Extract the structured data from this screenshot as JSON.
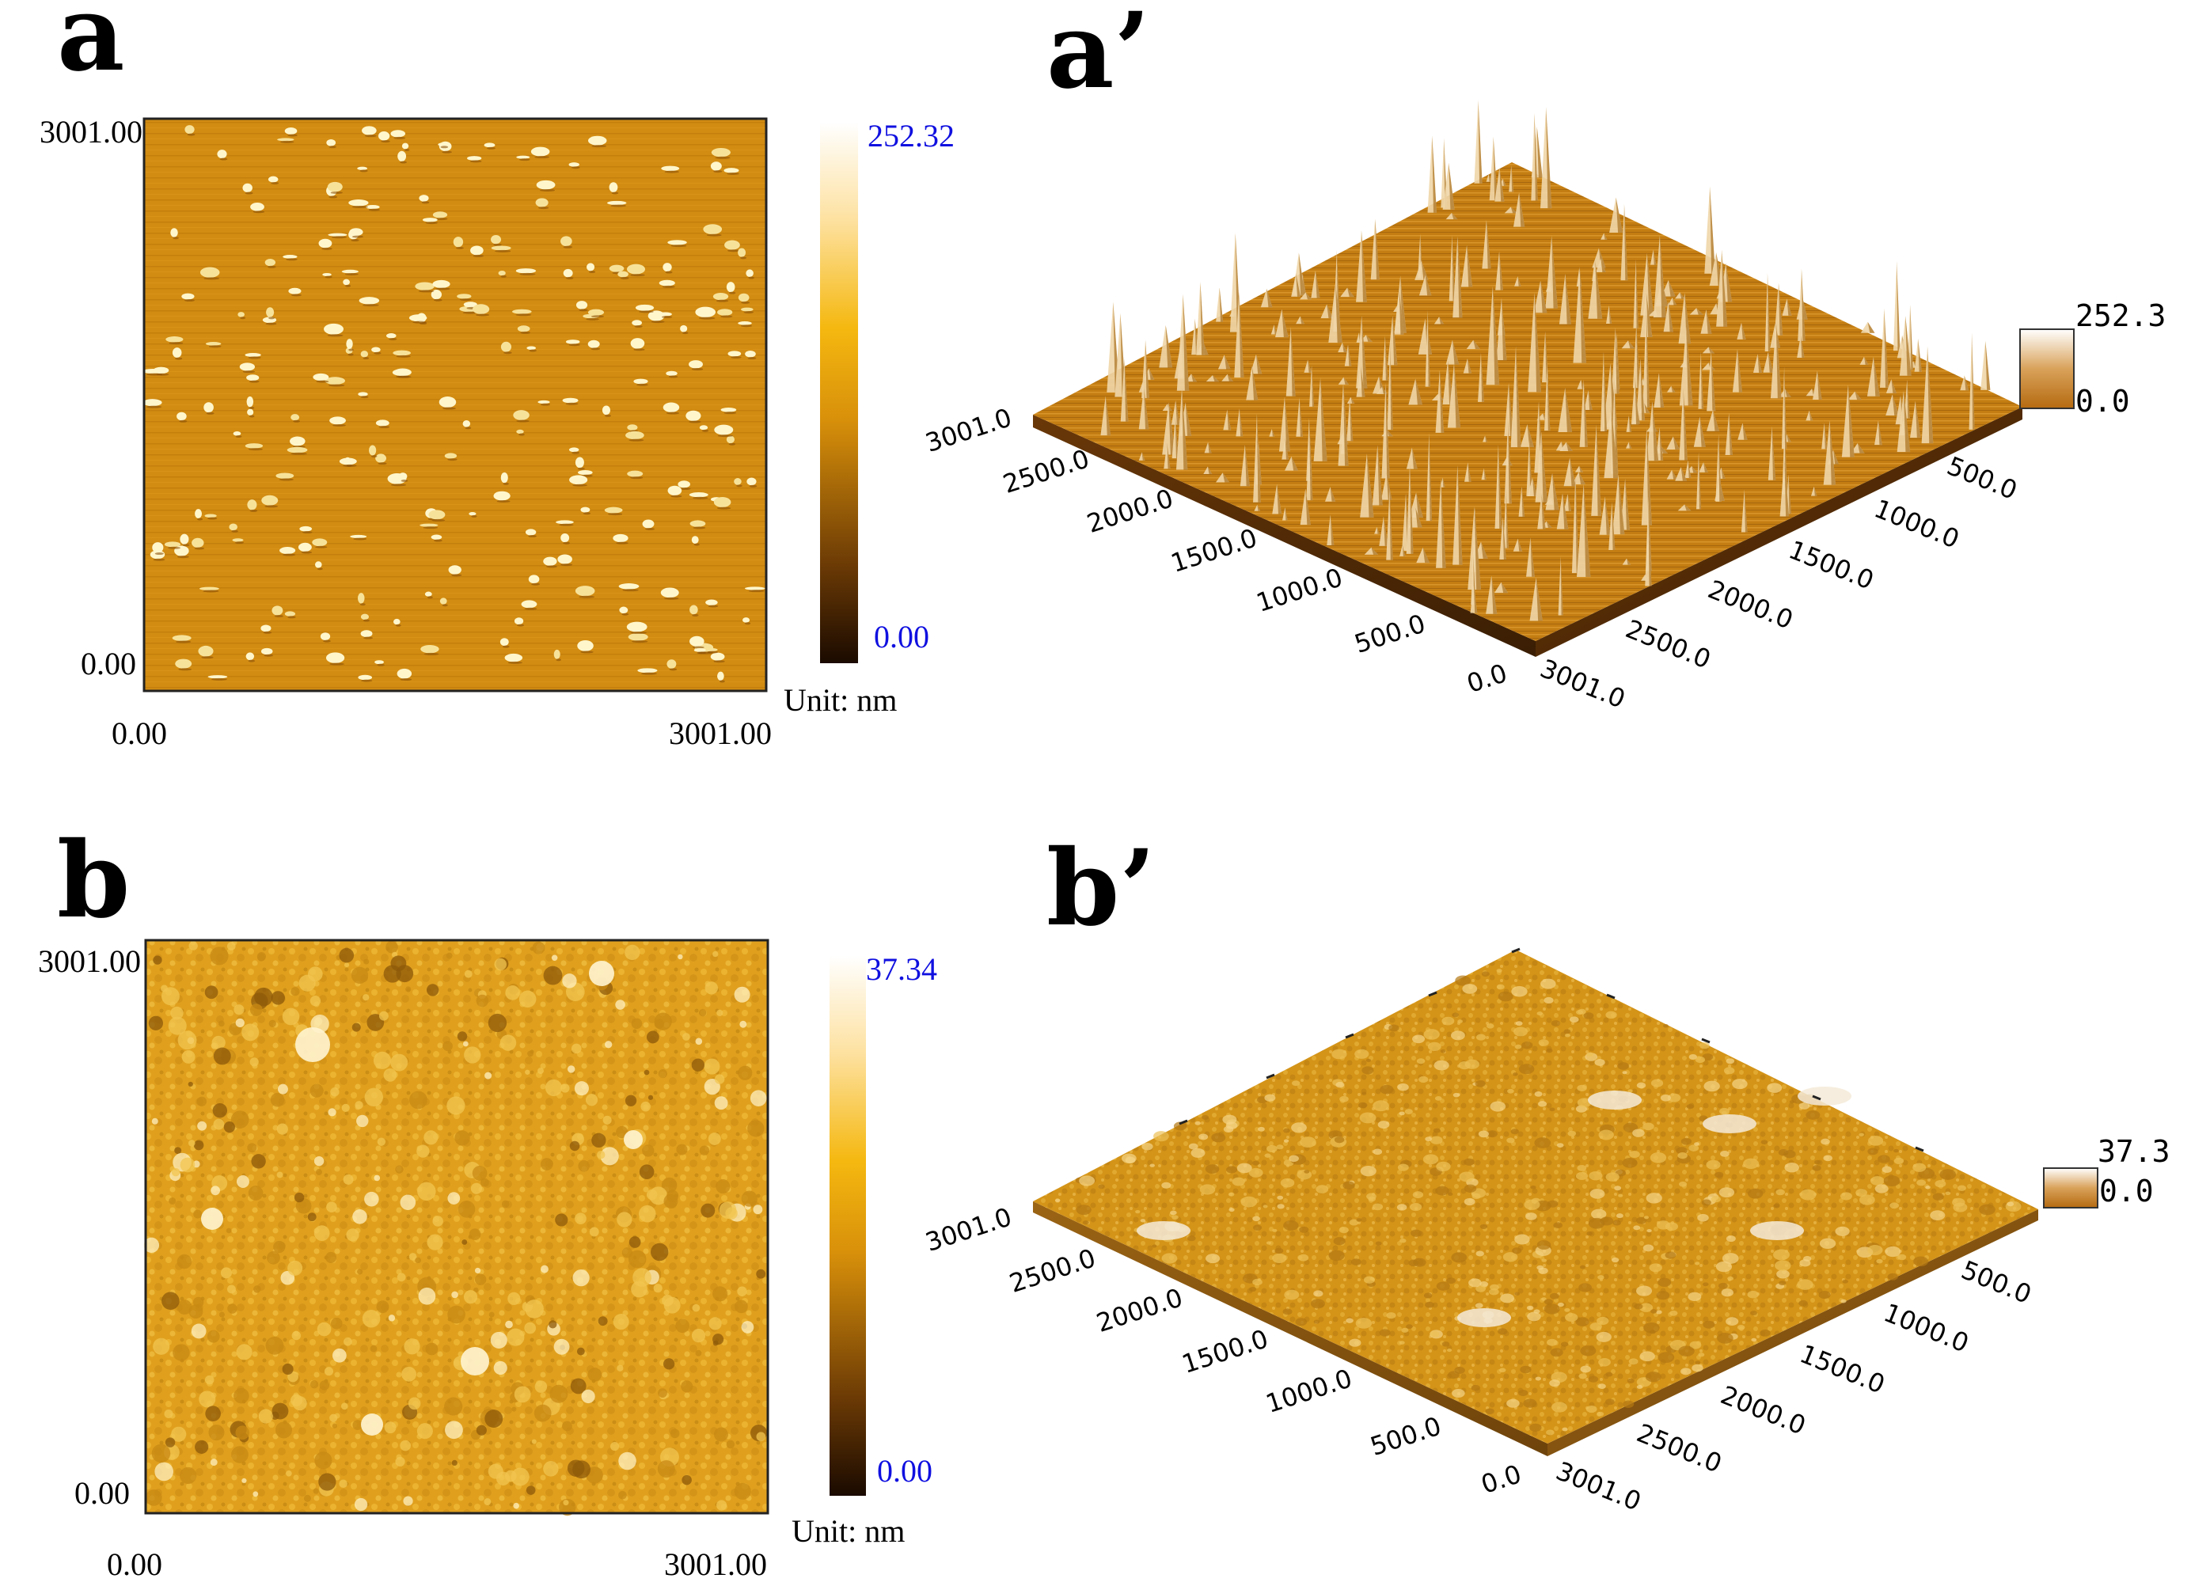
{
  "panels": {
    "a": {
      "label": "a",
      "axis": {
        "x_min": "0.00",
        "x_max": "3001.00",
        "y_min": "0.00",
        "y_max": "3001.00"
      },
      "scale": {
        "max": "252.32",
        "min": "0.00",
        "unit": "Unit: nm"
      }
    },
    "a3d": {
      "label": "a’",
      "left_ticks": [
        "3001.0",
        "2500.0",
        "2000.0",
        "1500.0",
        "1000.0",
        "500.0",
        "0.0"
      ],
      "right_ticks": [
        "500.0",
        "1000.0",
        "1500.0",
        "2000.0",
        "2500.0",
        "3001.0"
      ],
      "z_max": "252.3",
      "z_min": "0.0"
    },
    "b": {
      "label": "b",
      "axis": {
        "x_min": "0.00",
        "x_max": "3001.00",
        "y_min": "0.00",
        "y_max": "3001.00"
      },
      "scale": {
        "max": "37.34",
        "min": "0.00",
        "unit": "Unit: nm"
      }
    },
    "b3d": {
      "label": "b’",
      "left_ticks": [
        "3001.0",
        "2500.0",
        "2000.0",
        "1500.0",
        "1000.0",
        "500.0",
        "0.0"
      ],
      "right_ticks": [
        "500.0",
        "1000.0",
        "1500.0",
        "2000.0",
        "2500.0",
        "3001.0"
      ],
      "z_max": "37.3",
      "z_min": "0.0"
    }
  },
  "colors": {
    "afm_base": "#d08a12",
    "afm_dark": "#2a1300",
    "afm_light": "#fffbe8",
    "scale_text": "#1010e0"
  }
}
